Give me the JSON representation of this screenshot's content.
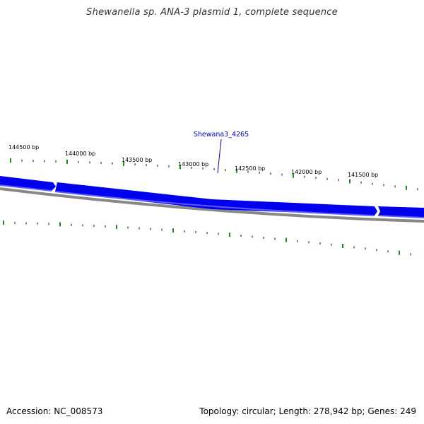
{
  "title": "Shewanella sp. ANA-3 plasmid 1, complete sequence",
  "footer": {
    "accession": "Accession: NC_008573",
    "summary": "Topology: circular; Length: 278,942 bp; Genes: 249"
  },
  "colors": {
    "gene": "#0000ee",
    "gene_highlight": "#5a5aff",
    "backbone": "#888888",
    "ticks": "#228822",
    "gene_label": "#0000cc"
  },
  "ticks": {
    "labels": [
      "144500 bp",
      "144000 bp",
      "143500 bp",
      "143000 bp",
      "142500 bp",
      "142000 bp",
      "141500 bp"
    ]
  },
  "gene_label": {
    "text": "Shewana3_4265"
  }
}
